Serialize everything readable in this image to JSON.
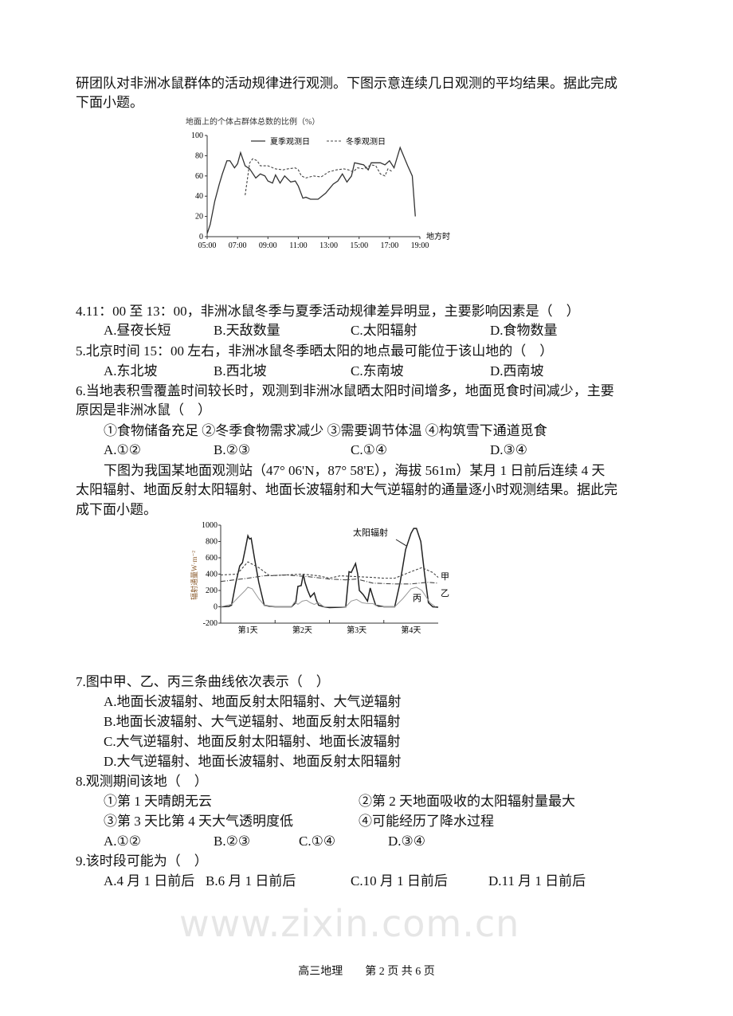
{
  "intro1": [
    "研团队对非洲冰鼠群体的活动规律进行观测。下图示意连续几日观测的平均结果。据此完成",
    "下面小题。"
  ],
  "q4": {
    "stem": "4.11：00 至 13：00，非洲冰鼠冬季与夏季活动规律差异明显，主要影响因素是（　）",
    "options": [
      "A.昼夜长短",
      "B.天敌数量",
      "C.太阳辐射",
      "D.食物数量"
    ]
  },
  "q5": {
    "stem": "5.北京时间 15：00 左右，非洲冰鼠冬季晒太阳的地点最可能位于该山地的（　）",
    "options": [
      "A.东北坡",
      "B.西北坡",
      "C.东南坡",
      "D.西南坡"
    ]
  },
  "q6": {
    "stem": [
      "6.当地表积雪覆盖时间较长时，观测到非洲冰鼠晒太阳时间增多，地面觅食时间减少，主要",
      "原因是非洲冰鼠（　）"
    ],
    "statements": "①食物储备充足 ②冬季食物需求减少 ③需要调节体温 ④构筑雪下通道觅食",
    "options": [
      "A.①②",
      "B.②③",
      "C.①④",
      "D.③④"
    ]
  },
  "intro2": [
    "下图为我国某地面观测站（47° 06'N，87° 58'E），海拔 561m）某月 1 日前后连续 4 天",
    "太阳辐射、地面反射太阳辐射、地面长波辐射和大气逆辐射的通量逐小时观测结果。据此完",
    "成下面小题。"
  ],
  "watermark": "www.zixin.com.cn",
  "q7": {
    "stem": "7.图中甲、乙、丙三条曲线依次表示（　）",
    "options": [
      "A.地面长波辐射、地面反射太阳辐射、大气逆辐射",
      "B.地面长波辐射、大气逆辐射、地面反射太阳辐射",
      "C.大气逆辐射、地面反射太阳辐射、地面长波辐射",
      "D.大气逆辐射、地面长波辐射、地面反射太阳辐射"
    ]
  },
  "q8": {
    "stem": "8.观测期间该地（　）",
    "statements": [
      "①第 1 天晴朗无云",
      "②第 2 天地面吸收的太阳辐射量最大",
      "③第 3 天比第 4 天大气透明度低",
      "④可能经历了降水过程"
    ],
    "options": [
      "A.①②",
      "B.②③",
      "C.①④",
      "D.③④"
    ]
  },
  "q9": {
    "stem": "9.该时段可能为（　）",
    "options": [
      "A.4 月 1 日前后",
      "B.6 月 1 日前后",
      "C.10 月 1 日前后",
      "D.11 月 1 日前后"
    ]
  },
  "footer": "高三地理　　第 2 页 共 6 页",
  "chart_data": [
    {
      "type": "line",
      "title": "地面上的个体占群体总数的比例（%）",
      "xlabel": "地方时",
      "ylabel": "",
      "xlim": [
        5,
        19
      ],
      "ylim": [
        0,
        100
      ],
      "xticks": [
        "05:00",
        "07:00",
        "09:00",
        "11:00",
        "13:00",
        "15:00",
        "17:00",
        "19:00"
      ],
      "yticks": [
        0,
        20,
        40,
        60,
        80,
        100
      ],
      "legend": "top",
      "grid": false,
      "series": [
        {
          "name": "夏季观测日",
          "style": "solid",
          "points": [
            [
              5.0,
              3
            ],
            [
              5.2,
              12
            ],
            [
              5.5,
              35
            ],
            [
              5.8,
              52
            ],
            [
              6.0,
              62
            ],
            [
              6.3,
              75
            ],
            [
              6.5,
              75
            ],
            [
              6.8,
              68
            ],
            [
              7.0,
              72
            ],
            [
              7.2,
              83
            ],
            [
              7.5,
              70
            ],
            [
              7.8,
              67
            ],
            [
              8.2,
              58
            ],
            [
              8.5,
              62
            ],
            [
              8.8,
              60
            ],
            [
              9.0,
              55
            ],
            [
              9.3,
              53
            ],
            [
              9.5,
              61
            ],
            [
              9.8,
              53
            ],
            [
              10.1,
              60
            ],
            [
              10.5,
              54
            ],
            [
              10.8,
              55
            ],
            [
              11.0,
              50
            ],
            [
              11.3,
              38
            ],
            [
              11.5,
              39
            ],
            [
              11.8,
              37
            ],
            [
              12.3,
              37
            ],
            [
              12.8,
              43
            ],
            [
              13.3,
              52
            ],
            [
              13.6,
              55
            ],
            [
              13.9,
              62
            ],
            [
              14.2,
              54
            ],
            [
              14.5,
              60
            ],
            [
              14.7,
              73
            ],
            [
              15.0,
              72
            ],
            [
              15.3,
              71
            ],
            [
              15.6,
              66
            ],
            [
              15.8,
              73
            ],
            [
              16.4,
              73
            ],
            [
              16.7,
              71
            ],
            [
              17.0,
              75
            ],
            [
              17.3,
              68
            ],
            [
              17.7,
              88
            ],
            [
              18.2,
              70
            ],
            [
              18.5,
              60
            ],
            [
              18.7,
              20
            ]
          ]
        },
        {
          "name": "冬季观测日",
          "style": "dashed",
          "points": [
            [
              7.5,
              41
            ],
            [
              7.8,
              73
            ],
            [
              8.0,
              77
            ],
            [
              8.3,
              75
            ],
            [
              8.5,
              70
            ],
            [
              9.0,
              70
            ],
            [
              9.5,
              67
            ],
            [
              10.0,
              66
            ],
            [
              10.3,
              67
            ],
            [
              10.8,
              68
            ],
            [
              11.0,
              66
            ],
            [
              11.2,
              60
            ],
            [
              11.5,
              58
            ],
            [
              12.0,
              60
            ],
            [
              12.5,
              59
            ],
            [
              13.0,
              64
            ],
            [
              13.5,
              66
            ],
            [
              14.0,
              67
            ],
            [
              14.3,
              66
            ],
            [
              14.6,
              64
            ],
            [
              14.9,
              68
            ],
            [
              15.3,
              67
            ],
            [
              15.8,
              71
            ],
            [
              16.1,
              70
            ],
            [
              16.4,
              62
            ],
            [
              16.7,
              60
            ],
            [
              16.9,
              67
            ],
            [
              17.2,
              64
            ]
          ]
        }
      ]
    },
    {
      "type": "line",
      "title": "",
      "ylabel": "辐射通量W·m⁻²",
      "xlabel": "",
      "xlim": [
        0,
        4
      ],
      "ylim": [
        -200,
        1000
      ],
      "xticks": [
        "第1天",
        "第2天",
        "第3天",
        "第4天"
      ],
      "yticks": [
        -200,
        0,
        200,
        400,
        600,
        800,
        1000
      ],
      "grid": false,
      "series": [
        {
          "name": "太阳辐射",
          "style": "solid-bold",
          "points": [
            [
              0,
              0
            ],
            [
              0.15,
              5
            ],
            [
              0.2,
              20
            ],
            [
              0.28,
              300
            ],
            [
              0.35,
              500
            ],
            [
              0.4,
              540
            ],
            [
              0.45,
              700
            ],
            [
              0.5,
              870
            ],
            [
              0.53,
              830
            ],
            [
              0.56,
              840
            ],
            [
              0.62,
              600
            ],
            [
              0.7,
              300
            ],
            [
              0.8,
              20
            ],
            [
              0.9,
              5
            ],
            [
              1.0,
              0
            ],
            [
              1.3,
              0
            ],
            [
              1.38,
              50
            ],
            [
              1.42,
              250
            ],
            [
              1.48,
              260
            ],
            [
              1.52,
              400
            ],
            [
              1.55,
              300
            ],
            [
              1.6,
              200
            ],
            [
              1.65,
              120
            ],
            [
              1.72,
              170
            ],
            [
              1.76,
              80
            ],
            [
              1.8,
              20
            ],
            [
              1.9,
              0
            ],
            [
              2.0,
              -10
            ],
            [
              2.2,
              -5
            ],
            [
              2.3,
              0
            ],
            [
              2.36,
              430
            ],
            [
              2.4,
              420
            ],
            [
              2.48,
              530
            ],
            [
              2.52,
              400
            ],
            [
              2.55,
              200
            ],
            [
              2.62,
              150
            ],
            [
              2.7,
              70
            ],
            [
              2.75,
              230
            ],
            [
              2.8,
              120
            ],
            [
              2.85,
              20
            ],
            [
              3.0,
              0
            ],
            [
              3.2,
              0
            ],
            [
              3.3,
              300
            ],
            [
              3.4,
              700
            ],
            [
              3.5,
              900
            ],
            [
              3.55,
              960
            ],
            [
              3.6,
              960
            ],
            [
              3.68,
              800
            ],
            [
              3.75,
              400
            ],
            [
              3.82,
              50
            ],
            [
              3.9,
              0
            ],
            [
              4.0,
              -5
            ]
          ]
        },
        {
          "name": "甲",
          "style": "dashed",
          "points": [
            [
              0,
              390
            ],
            [
              0.3,
              400
            ],
            [
              0.5,
              550
            ],
            [
              0.7,
              480
            ],
            [
              0.9,
              380
            ],
            [
              1.2,
              390
            ],
            [
              1.5,
              400
            ],
            [
              1.8,
              380
            ],
            [
              2.0,
              350
            ],
            [
              2.2,
              380
            ],
            [
              2.5,
              370
            ],
            [
              2.8,
              360
            ],
            [
              3.0,
              350
            ],
            [
              3.2,
              350
            ],
            [
              3.5,
              430
            ],
            [
              3.7,
              480
            ],
            [
              3.9,
              420
            ],
            [
              4.0,
              360
            ]
          ]
        },
        {
          "name": "乙",
          "style": "dashdot",
          "points": [
            [
              0,
              310
            ],
            [
              0.5,
              350
            ],
            [
              0.8,
              380
            ],
            [
              1.2,
              390
            ],
            [
              1.6,
              370
            ],
            [
              2.0,
              340
            ],
            [
              2.3,
              330
            ],
            [
              2.5,
              340
            ],
            [
              2.8,
              290
            ],
            [
              3.2,
              280
            ],
            [
              3.5,
              280
            ],
            [
              3.8,
              300
            ],
            [
              4.0,
              290
            ]
          ]
        },
        {
          "name": "丙",
          "style": "thin-gray",
          "points": [
            [
              0,
              0
            ],
            [
              0.2,
              30
            ],
            [
              0.3,
              100
            ],
            [
              0.45,
              200
            ],
            [
              0.5,
              240
            ],
            [
              0.58,
              220
            ],
            [
              0.7,
              100
            ],
            [
              0.8,
              20
            ],
            [
              0.9,
              0
            ],
            [
              1.3,
              0
            ],
            [
              1.36,
              60
            ],
            [
              1.42,
              30
            ],
            [
              1.5,
              70
            ],
            [
              1.58,
              80
            ],
            [
              1.65,
              50
            ],
            [
              1.72,
              30
            ],
            [
              1.8,
              50
            ],
            [
              1.9,
              0
            ],
            [
              2.3,
              0
            ],
            [
              2.4,
              70
            ],
            [
              2.5,
              90
            ],
            [
              2.6,
              50
            ],
            [
              2.7,
              40
            ],
            [
              2.8,
              40
            ],
            [
              2.9,
              0
            ],
            [
              3.2,
              0
            ],
            [
              3.35,
              100
            ],
            [
              3.5,
              220
            ],
            [
              3.6,
              240
            ],
            [
              3.7,
              200
            ],
            [
              3.85,
              50
            ],
            [
              3.95,
              0
            ]
          ]
        }
      ]
    }
  ]
}
